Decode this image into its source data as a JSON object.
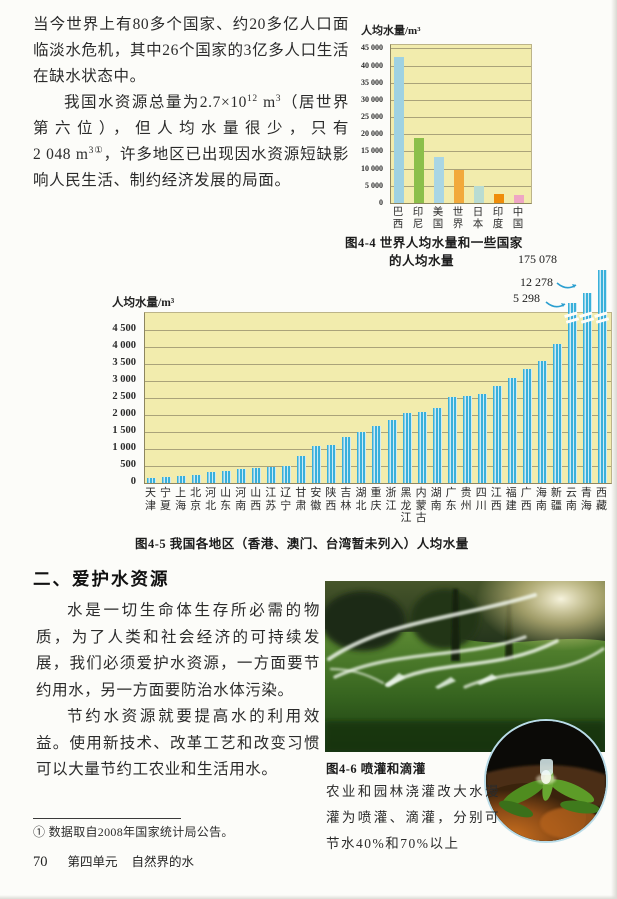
{
  "intro": {
    "p1": "当今世界上有80多个国家、约20多亿人口面临淡水危机，其中26个国家的3亿多人口生活在缺水状态中。",
    "p2a": "我国水资源总量为",
    "p2num1": "2.7×10",
    "p2sup1": "12",
    "p2b": " m",
    "p2sup2": "3",
    "p2c": "（居世界第六位），但人均水量很少，只有",
    "p2num2": "2 048",
    "p2d": " m",
    "p2sup3": "3",
    "p2note": "①",
    "p2e": "，许多地区已出现因水资源短缺影响人民生活、制约经济发展的局面。"
  },
  "section2": {
    "heading": "二、爱护水资源",
    "p1": "水是一切生命体生存所必需的物质，为了人类和社会经济的可持续发展，我们必须爱护水资源，一方面要节约用水，另一方面要防治水体污染。",
    "p2": "节约水资源就要提高水的利用效益。使用新技术、改革工艺和改变习惯可以大量节约工农业和生活用水。"
  },
  "figures": {
    "fig44_caption_line1": "图4-4 世界人均水量和一些国家",
    "fig44_caption_line2": "的人均水量",
    "fig45_caption": "图4-5 我国各地区（香港、澳门、台湾暂未列入）人均水量",
    "fig46_caption": "图4-6 喷灌和滴灌",
    "fig46_desc": "农业和园林浇灌改大水漫灌为喷灌、滴灌，分别可节水40%和70%以上"
  },
  "footnote": "① 数据取自2008年国家统计局公告。",
  "footer": {
    "page_number": "70",
    "unit": "第四单元",
    "book": "自然界的水"
  },
  "colors": {
    "plot_bg": "#f2ecad",
    "grid": "#aaa37a",
    "china_bar_blue": "#39b0da"
  },
  "chart_data": [
    {
      "id": "world-per-capita-water",
      "type": "bar",
      "title": "人均水量/m³",
      "categories": [
        "巴西",
        "印尼",
        "美国",
        "世界",
        "日本",
        "印度",
        "中国"
      ],
      "values": [
        42500,
        19000,
        13500,
        9500,
        5000,
        2500,
        2200
      ],
      "bar_colors": [
        "#9fd2e2",
        "#8cbf4a",
        "#a9d6e4",
        "#f2a93b",
        "#b9dcd2",
        "#ef8d0a",
        "#efa6c4"
      ],
      "ylabel": "人均水量/m³",
      "ylim": [
        0,
        46000
      ],
      "yticks": [
        "0",
        "5 000",
        "10 000",
        "15 000",
        "20 000",
        "25 000",
        "30 000",
        "35 000",
        "40 000",
        "45 000"
      ],
      "grid": true,
      "legend": "none"
    },
    {
      "id": "china-regions-per-capita-water",
      "type": "bar",
      "title": "人均水量/m³",
      "categories": [
        "天津",
        "宁夏",
        "上海",
        "北京",
        "河北",
        "山东",
        "河南",
        "山西",
        "江苏",
        "辽宁",
        "甘肃",
        "安徽",
        "陕西",
        "吉林",
        "湖北",
        "重庆",
        "浙江",
        "黑龙江",
        "内蒙古",
        "湖南",
        "广东",
        "贵州",
        "四川",
        "江西",
        "福建",
        "广西",
        "海南",
        "新疆",
        "云南",
        "青海",
        "西藏"
      ],
      "values": [
        150,
        190,
        200,
        230,
        330,
        360,
        400,
        430,
        480,
        500,
        800,
        1100,
        1120,
        1350,
        1500,
        1680,
        1860,
        2060,
        2100,
        2200,
        2520,
        2560,
        2620,
        2850,
        3100,
        3350,
        3600,
        4100,
        5298,
        12278,
        175078
      ],
      "ylabel": "人均水量/m³",
      "ylim": [
        0,
        5000
      ],
      "yticks": [
        "0",
        "500",
        "1 000",
        "1 500",
        "2 000",
        "2 500",
        "3 000",
        "3 500",
        "4 000",
        "4 500"
      ],
      "grid": true,
      "legend": "none",
      "annotations": [
        {
          "label": "5 298",
          "category": "云南"
        },
        {
          "label": "12 278",
          "category": "青海"
        },
        {
          "label": "175 078",
          "category": "西藏"
        }
      ]
    }
  ]
}
